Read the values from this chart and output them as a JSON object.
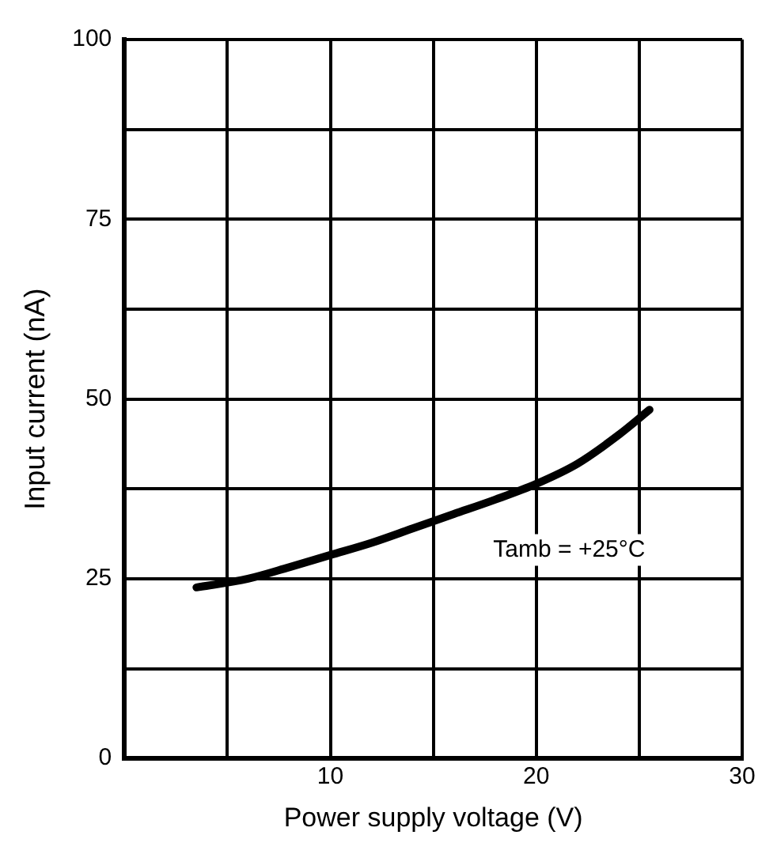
{
  "chart_data": {
    "type": "line",
    "xlabel": "Power supply voltage (V)",
    "ylabel": "Input current (nA)",
    "x": [
      3.5,
      6,
      8,
      10,
      12,
      14,
      16,
      18,
      20,
      22,
      24,
      25.5
    ],
    "series": [
      {
        "color": "#000000",
        "values": [
          23.8,
          25,
          26.6,
          28.3,
          30,
          32,
          34,
          36,
          38.2,
          41,
          45,
          48.5
        ]
      }
    ],
    "xlim": [
      0,
      30
    ],
    "ylim": [
      0,
      100
    ],
    "xticks": [
      {
        "value": 0,
        "label": null
      },
      {
        "value": 5,
        "label": null
      },
      10,
      {
        "value": 15,
        "label": null
      },
      20,
      {
        "value": 25,
        "label": null
      },
      30
    ],
    "yticks": [
      0,
      {
        "value": 12.5,
        "label": null
      },
      25,
      {
        "value": 37.5,
        "label": null
      },
      50,
      {
        "value": 62.5,
        "label": null
      },
      75,
      {
        "value": 87.5,
        "label": null
      },
      100
    ],
    "grid": true,
    "marker": "none",
    "line_style": "solid",
    "annotations": [
      "Tamb = +25°C"
    ]
  }
}
